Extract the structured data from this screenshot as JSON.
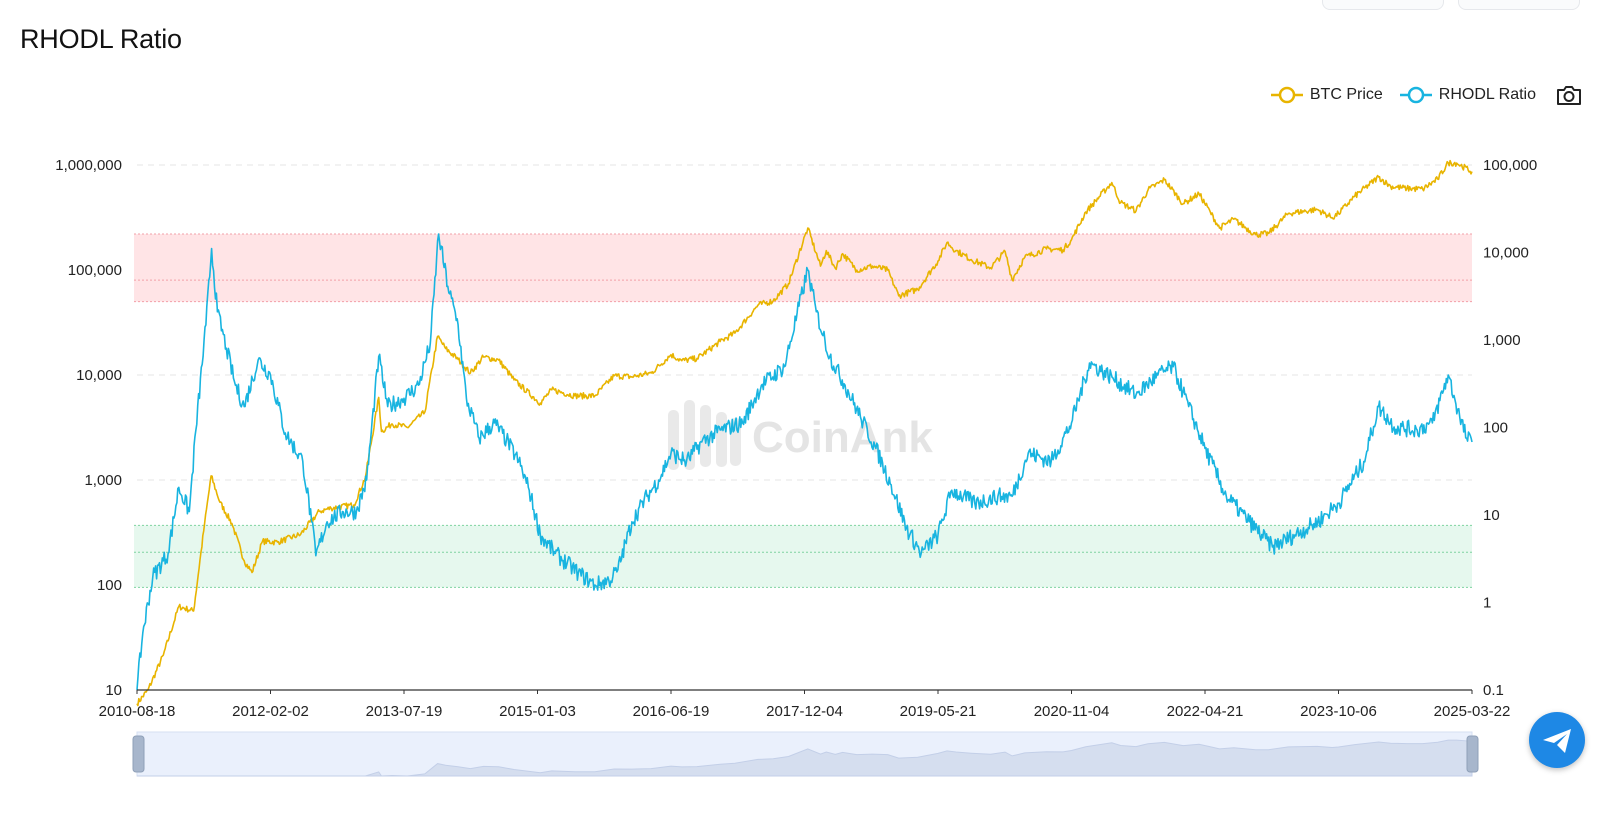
{
  "title": "RHODL Ratio",
  "watermark": "CoinAnk",
  "legend": [
    {
      "name": "BTC Price",
      "color": "#e8b400"
    },
    {
      "name": "RHODL Ratio",
      "color": "#18b4e0"
    }
  ],
  "icons": {
    "camera": "camera-icon",
    "chat": "paper-plane-icon"
  },
  "chart_data": {
    "type": "line",
    "x_axis": {
      "tick_labels": [
        "2010-08-18",
        "2012-02-02",
        "2013-07-19",
        "2015-01-03",
        "2016-06-19",
        "2017-12-04",
        "2019-05-21",
        "2020-11-04",
        "2022-04-21",
        "2023-10-06",
        "2025-03-22"
      ],
      "range": [
        "2010-08-18",
        "2025-03-22"
      ]
    },
    "y_axis_left": {
      "scale": "log",
      "range": [
        10,
        1000000
      ],
      "tick_labels": [
        "10",
        "100",
        "1,000",
        "10,000",
        "100,000",
        "1,000,000"
      ]
    },
    "y_axis_right": {
      "scale": "log",
      "range": [
        0.1,
        100000
      ],
      "tick_labels": [
        "0.1",
        "1",
        "10",
        "100",
        "1,000",
        "10,000",
        "100,000"
      ]
    },
    "bands": [
      {
        "zone": "red",
        "color": "#ffe4e6",
        "line_color": "#f2a0a8",
        "range": [
          50000,
          220000
        ],
        "midline": 80000
      },
      {
        "zone": "green",
        "color": "#e6f8ee",
        "line_color": "#7fd3a0",
        "range": [
          95,
          370
        ],
        "midline": 205
      }
    ],
    "series": [
      {
        "name": "BTC Price",
        "axis": "right",
        "color": "#e8b400",
        "points": [
          [
            "2010-08-18",
            0.07
          ],
          [
            "2010-10-01",
            0.1
          ],
          [
            "2010-12-01",
            0.25
          ],
          [
            "2011-02-01",
            0.9
          ],
          [
            "2011-04-01",
            0.8
          ],
          [
            "2011-05-15",
            8
          ],
          [
            "2011-06-10",
            28
          ],
          [
            "2011-07-15",
            14
          ],
          [
            "2011-09-01",
            8
          ],
          [
            "2011-10-20",
            3
          ],
          [
            "2011-11-20",
            2.2
          ],
          [
            "2012-01-01",
            5
          ],
          [
            "2012-03-01",
            4.9
          ],
          [
            "2012-06-01",
            6
          ],
          [
            "2012-08-15",
            11
          ],
          [
            "2012-10-01",
            12
          ],
          [
            "2012-12-31",
            13
          ],
          [
            "2013-02-15",
            27
          ],
          [
            "2013-04-09",
            220
          ],
          [
            "2013-04-20",
            90
          ],
          [
            "2013-06-01",
            110
          ],
          [
            "2013-08-01",
            100
          ],
          [
            "2013-10-10",
            150
          ],
          [
            "2013-11-30",
            1100
          ],
          [
            "2014-01-01",
            800
          ],
          [
            "2014-02-20",
            600
          ],
          [
            "2014-04-10",
            420
          ],
          [
            "2014-06-01",
            640
          ],
          [
            "2014-08-01",
            590
          ],
          [
            "2014-10-01",
            350
          ],
          [
            "2015-01-14",
            190
          ],
          [
            "2015-03-01",
            270
          ],
          [
            "2015-06-01",
            230
          ],
          [
            "2015-08-20",
            230
          ],
          [
            "2015-11-05",
            390
          ],
          [
            "2016-01-15",
            380
          ],
          [
            "2016-04-01",
            420
          ],
          [
            "2016-06-19",
            680
          ],
          [
            "2016-08-01",
            580
          ],
          [
            "2016-10-01",
            615
          ],
          [
            "2017-01-01",
            960
          ],
          [
            "2017-03-01",
            1200
          ],
          [
            "2017-06-01",
            2500
          ],
          [
            "2017-08-01",
            2800
          ],
          [
            "2017-10-01",
            4400
          ],
          [
            "2017-12-17",
            19000
          ],
          [
            "2018-02-06",
            7000
          ],
          [
            "2018-03-01",
            10500
          ],
          [
            "2018-04-06",
            6600
          ],
          [
            "2018-05-05",
            9700
          ],
          [
            "2018-07-01",
            6300
          ],
          [
            "2018-09-01",
            7000
          ],
          [
            "2018-11-01",
            6300
          ],
          [
            "2018-12-15",
            3200
          ],
          [
            "2019-03-01",
            3800
          ],
          [
            "2019-05-21",
            8000
          ],
          [
            "2019-06-26",
            13000
          ],
          [
            "2019-08-01",
            10500
          ],
          [
            "2019-10-01",
            8300
          ],
          [
            "2019-12-17",
            6700
          ],
          [
            "2020-02-13",
            10300
          ],
          [
            "2020-03-12",
            4900
          ],
          [
            "2020-05-01",
            8800
          ],
          [
            "2020-07-27",
            11000
          ],
          [
            "2020-10-01",
            10700
          ],
          [
            "2020-11-04",
            14000
          ],
          [
            "2020-12-31",
            29000
          ],
          [
            "2021-04-14",
            63000
          ],
          [
            "2021-05-19",
            37000
          ],
          [
            "2021-07-20",
            30000
          ],
          [
            "2021-09-06",
            52000
          ],
          [
            "2021-11-10",
            68000
          ],
          [
            "2022-01-24",
            36000
          ],
          [
            "2022-03-28",
            47000
          ],
          [
            "2022-05-12",
            29000
          ],
          [
            "2022-06-18",
            19000
          ],
          [
            "2022-08-14",
            24000
          ],
          [
            "2022-11-09",
            16000
          ],
          [
            "2022-12-31",
            16500
          ],
          [
            "2023-03-20",
            28000
          ],
          [
            "2023-07-13",
            31000
          ],
          [
            "2023-09-11",
            25000
          ],
          [
            "2023-10-06",
            27900
          ],
          [
            "2023-12-10",
            44000
          ],
          [
            "2024-03-14",
            73000
          ],
          [
            "2024-05-01",
            57000
          ],
          [
            "2024-07-05",
            54000
          ],
          [
            "2024-09-06",
            53000
          ],
          [
            "2024-11-05",
            69000
          ],
          [
            "2024-12-17",
            106000
          ],
          [
            "2025-01-20",
            105000
          ],
          [
            "2025-03-22",
            84000
          ]
        ]
      },
      {
        "name": "RHODL Ratio",
        "axis": "left",
        "color": "#18b4e0",
        "points": [
          [
            "2010-08-18",
            10
          ],
          [
            "2010-09-10",
            35
          ],
          [
            "2010-10-20",
            120
          ],
          [
            "2010-12-20",
            200
          ],
          [
            "2011-02-01",
            850
          ],
          [
            "2011-03-15",
            500
          ],
          [
            "2011-04-10",
            3000
          ],
          [
            "2011-05-20",
            30000
          ],
          [
            "2011-06-12",
            160000
          ],
          [
            "2011-07-05",
            40000
          ],
          [
            "2011-08-10",
            18000
          ],
          [
            "2011-09-15",
            8000
          ],
          [
            "2011-10-20",
            5000
          ],
          [
            "2011-12-15",
            14000
          ],
          [
            "2012-02-02",
            10000
          ],
          [
            "2012-04-01",
            2800
          ],
          [
            "2012-06-10",
            1500
          ],
          [
            "2012-07-15",
            400
          ],
          [
            "2012-08-01",
            190
          ],
          [
            "2012-09-15",
            400
          ],
          [
            "2012-11-15",
            500
          ],
          [
            "2013-01-10",
            500
          ],
          [
            "2013-02-20",
            1000
          ],
          [
            "2013-04-09",
            15000
          ],
          [
            "2013-05-15",
            5000
          ],
          [
            "2013-07-19",
            6000
          ],
          [
            "2013-09-15",
            8000
          ],
          [
            "2013-11-01",
            20000
          ],
          [
            "2013-12-04",
            220000
          ],
          [
            "2014-01-10",
            70000
          ],
          [
            "2014-02-20",
            30000
          ],
          [
            "2014-03-25",
            6000
          ],
          [
            "2014-05-15",
            2500
          ],
          [
            "2014-07-15",
            3500
          ],
          [
            "2014-09-01",
            2400
          ],
          [
            "2014-10-20",
            1500
          ],
          [
            "2014-12-01",
            800
          ],
          [
            "2015-01-14",
            300
          ],
          [
            "2015-03-15",
            200
          ],
          [
            "2015-06-15",
            130
          ],
          [
            "2015-08-20",
            100
          ],
          [
            "2015-10-15",
            110
          ],
          [
            "2015-11-20",
            140
          ],
          [
            "2016-01-15",
            400
          ],
          [
            "2016-03-15",
            700
          ],
          [
            "2016-05-01",
            1000
          ],
          [
            "2016-06-19",
            1800
          ],
          [
            "2016-08-20",
            1500
          ],
          [
            "2016-10-20",
            2300
          ],
          [
            "2017-01-05",
            3000
          ],
          [
            "2017-04-01",
            3500
          ],
          [
            "2017-06-15",
            8000
          ],
          [
            "2017-09-15",
            12000
          ],
          [
            "2017-12-17",
            100000
          ],
          [
            "2018-01-20",
            40000
          ],
          [
            "2018-03-15",
            15000
          ],
          [
            "2018-05-15",
            8000
          ],
          [
            "2018-07-15",
            4000
          ],
          [
            "2018-09-15",
            2000
          ],
          [
            "2018-11-15",
            900
          ],
          [
            "2019-01-15",
            350
          ],
          [
            "2019-03-15",
            200
          ],
          [
            "2019-05-21",
            300
          ],
          [
            "2019-07-15",
            800
          ],
          [
            "2019-10-15",
            600
          ],
          [
            "2020-01-15",
            700
          ],
          [
            "2020-03-12",
            700
          ],
          [
            "2020-05-15",
            1800
          ],
          [
            "2020-08-15",
            1500
          ],
          [
            "2020-11-04",
            3500
          ],
          [
            "2021-01-15",
            13000
          ],
          [
            "2021-04-15",
            9500
          ],
          [
            "2021-07-20",
            6500
          ],
          [
            "2021-10-15",
            10000
          ],
          [
            "2021-12-15",
            12000
          ],
          [
            "2022-02-15",
            5000
          ],
          [
            "2022-04-21",
            2000
          ],
          [
            "2022-07-15",
            700
          ],
          [
            "2022-10-15",
            400
          ],
          [
            "2023-01-15",
            230
          ],
          [
            "2023-04-15",
            300
          ],
          [
            "2023-07-15",
            400
          ],
          [
            "2023-10-06",
            600
          ],
          [
            "2024-01-15",
            1500
          ],
          [
            "2024-03-14",
            5000
          ],
          [
            "2024-05-15",
            3200
          ],
          [
            "2024-08-15",
            3000
          ],
          [
            "2024-10-15",
            3500
          ],
          [
            "2024-12-17",
            10000
          ],
          [
            "2025-02-01",
            4000
          ],
          [
            "2025-03-01",
            2500
          ],
          [
            "2025-03-22",
            2300
          ]
        ]
      }
    ]
  }
}
